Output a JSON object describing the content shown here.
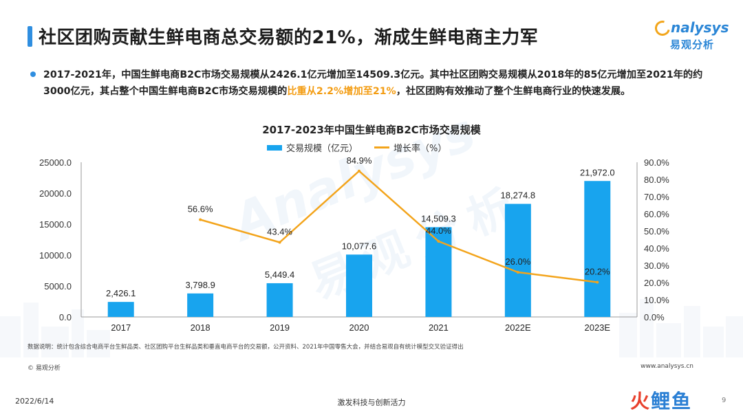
{
  "header": {
    "title": "社区团购贡献生鲜电商总交易额的21%，渐成生鲜电商主力军",
    "logo_en": "nalysys",
    "logo_cn": "易观分析"
  },
  "summary": {
    "text_before": "2017-2021年，中国生鲜电商B2C市场交易规模从2426.1亿元增加至14509.3亿元。其中社区团购交易规模从2018年的85亿元增加至2021年的约3000亿元，其占整个中国生鲜电商B2C市场交易规模的",
    "highlight": "比重从2.2%增加至21%",
    "text_after": "，社区团购有效推动了整个生鲜电商行业的快速发展。"
  },
  "colors": {
    "bar": "#18a4ee",
    "line": "#f3a41b",
    "accent": "#2f8ee0",
    "highlight": "#f39c12"
  },
  "chart_data": {
    "type": "bar",
    "title": "2017-2023年中国生鲜电商B2C市场交易规模",
    "categories": [
      "2017",
      "2018",
      "2019",
      "2020",
      "2021",
      "2022E",
      "2023E"
    ],
    "series": [
      {
        "name": "交易规模（亿元）",
        "type": "bar",
        "axis": "left",
        "values": [
          2426.1,
          3798.9,
          5449.4,
          10077.6,
          14509.3,
          18274.8,
          21972.0
        ],
        "labels": [
          "2,426.1",
          "3,798.9",
          "5,449.4",
          "10,077.6",
          "14,509.3",
          "18,274.8",
          "21,972.0"
        ]
      },
      {
        "name": "增长率（%）",
        "type": "line",
        "axis": "right",
        "values": [
          null,
          56.6,
          43.4,
          84.9,
          44.0,
          26.0,
          20.2
        ],
        "labels": [
          "",
          "56.6%",
          "43.4%",
          "84.9%",
          "44.0%",
          "26.0%",
          "20.2%"
        ]
      }
    ],
    "ylim_left": [
      0,
      25000
    ],
    "yticks_left": [
      "0.0",
      "5000.0",
      "10000.0",
      "15000.0",
      "20000.0",
      "25000.0"
    ],
    "ylim_right": [
      0,
      90
    ],
    "yticks_right": [
      "0.0%",
      "10.0%",
      "20.0%",
      "30.0%",
      "40.0%",
      "50.0%",
      "60.0%",
      "70.0%",
      "80.0%",
      "90.0%"
    ],
    "legend_position": "top-center",
    "grid": false
  },
  "footer": {
    "source_note": "数据说明：统计包含综合电商平台生鲜品类、社区团购平台生鲜品类和垂直电商平台的交易额，公开资料、2021年中国零售大会，并结合易观自有统计模型交叉验证得出",
    "copyright": "© 易观分析",
    "website": "www.analysys.cn",
    "date": "2022/6/14",
    "slogan": "激发科技与创新活力",
    "page": "9",
    "brand_part1": "火",
    "brand_part2": "鲤鱼"
  }
}
